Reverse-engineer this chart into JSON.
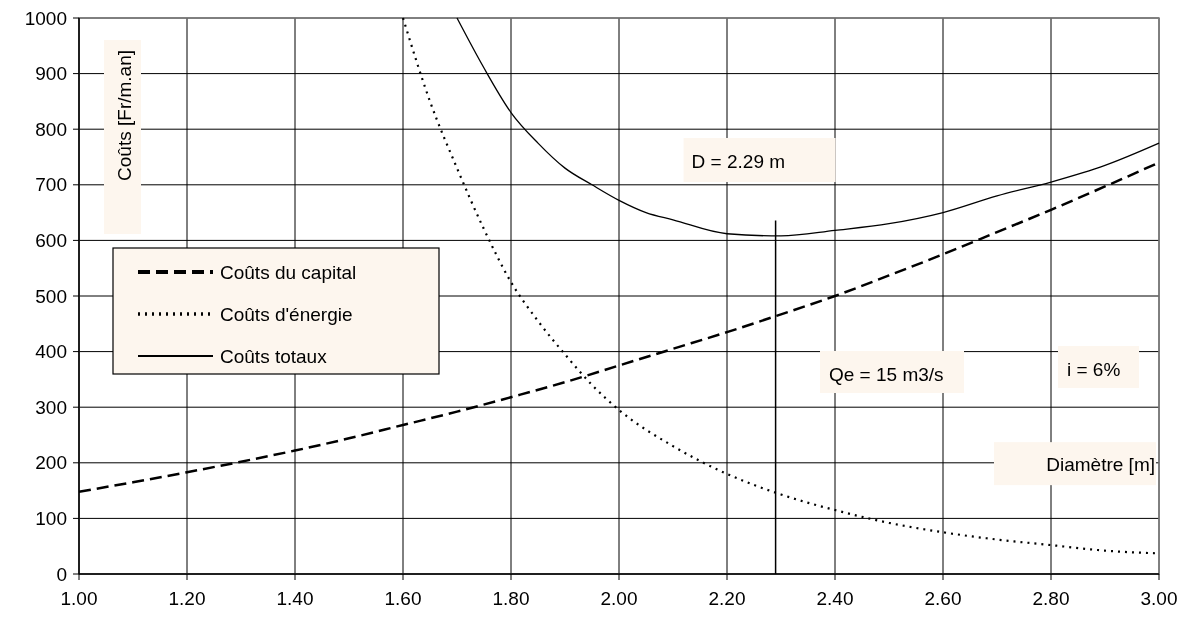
{
  "chart_data": {
    "type": "line",
    "xlabel": "Diamètre [m]",
    "ylabel": "Coûts [Fr/m.an]",
    "xlim": [
      1,
      3
    ],
    "xticks": [
      {
        "value": 1,
        "label": "1.00"
      },
      {
        "value": 1.2,
        "label": "1.20"
      },
      {
        "value": 1.4,
        "label": "1.40"
      },
      {
        "value": 1.6,
        "label": "1.60"
      },
      {
        "value": 1.8,
        "label": "1.80"
      },
      {
        "value": 2,
        "label": "2.00"
      },
      {
        "value": 2.2,
        "label": "2.20"
      },
      {
        "value": 2.4,
        "label": "2.40"
      },
      {
        "value": 2.6,
        "label": "2.60"
      },
      {
        "value": 2.8,
        "label": "2.80"
      },
      {
        "value": 3,
        "label": "3.00"
      }
    ],
    "ylim": [
      0,
      1000
    ],
    "yticks": [
      0,
      100,
      200,
      300,
      400,
      500,
      600,
      700,
      800,
      900,
      1000
    ],
    "grid": true,
    "legend": "left",
    "series": [
      {
        "name": "Coûts du capital",
        "color": "#000000",
        "line_style": "dashed",
        "x": [
          1,
          1.1,
          1.2,
          1.3,
          1.4,
          1.5,
          1.6,
          1.7,
          1.8,
          1.9,
          2,
          2.1,
          2.2,
          2.3,
          2.4,
          2.5,
          2.6,
          2.7,
          2.8,
          2.9,
          3
        ],
        "values": [
          148,
          165,
          183,
          202,
          222,
          244,
          268,
          292,
          318,
          345,
          375,
          405,
          435,
          467,
          500,
          537,
          575,
          615,
          655,
          697,
          740
        ]
      },
      {
        "name": "Coûts d'énergie",
        "color": "#000000",
        "line_style": "dotted",
        "x": [
          1.6,
          1.65,
          1.7,
          1.75,
          1.8,
          1.85,
          1.9,
          1.95,
          2,
          2.1,
          2.2,
          2.3,
          2.4,
          2.5,
          2.6,
          2.7,
          2.8,
          2.9,
          3
        ],
        "values": [
          1000,
          850,
          730,
          620,
          525,
          455,
          395,
          340,
          295,
          230,
          180,
          143,
          115,
          92,
          75,
          62,
          52,
          42,
          37
        ]
      },
      {
        "name": "Coûts totaux",
        "color": "#000000",
        "line_style": "solid",
        "x": [
          1.7,
          1.75,
          1.8,
          1.85,
          1.9,
          1.95,
          2,
          2.05,
          2.1,
          2.2,
          2.3,
          2.4,
          2.5,
          2.6,
          2.7,
          2.8,
          2.9,
          3
        ],
        "values": [
          1000,
          910,
          830,
          775,
          730,
          700,
          672,
          650,
          637,
          612,
          608,
          618,
          630,
          650,
          680,
          705,
          735,
          775
        ]
      }
    ],
    "ref_lines": [
      {
        "axis": "x",
        "value": 2.29,
        "label": "D = 2.29 m",
        "color": "#000000"
      }
    ],
    "annotations": [
      "Qe = 15 m3/s",
      "i = 6%"
    ]
  }
}
